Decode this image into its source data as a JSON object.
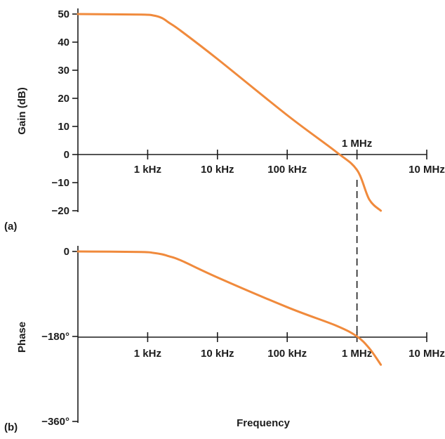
{
  "colors": {
    "curve": "#f08a3c",
    "axis": "#1c1c1c",
    "background": "#ffffff"
  },
  "chart_data": [
    {
      "type": "line",
      "panel_label": "(a)",
      "ylabel": "Gain (dB)",
      "xscale": "log",
      "xlim_hz": [
        100,
        10000000
      ],
      "ylim": [
        -20,
        50
      ],
      "yticks": [
        50,
        40,
        30,
        20,
        10,
        0,
        -10,
        -20
      ],
      "ytick_labels": [
        "50",
        "40",
        "30",
        "20",
        "10",
        "0",
        "−10",
        "−20"
      ],
      "xticks_hz": [
        1000,
        10000,
        100000,
        1000000,
        10000000
      ],
      "xtick_labels": [
        "1 kHz",
        "10 kHz",
        "100 kHz",
        "1 MHz",
        "10 MHz"
      ],
      "series": [
        {
          "x_hz": [
            100,
            800,
            1200,
            1600,
            2000,
            3000,
            10000,
            100000,
            500000,
            1000000,
            1500000,
            2200000
          ],
          "y": [
            50,
            49.8,
            49.5,
            48.6,
            47,
            44,
            34,
            14,
            1,
            -5.5,
            -16,
            -20
          ]
        }
      ]
    },
    {
      "type": "line",
      "panel_label": "(b)",
      "ylabel": "Phase",
      "xlabel": "Frequency",
      "xscale": "log",
      "xlim_hz": [
        100,
        10000000
      ],
      "ylim": [
        -360,
        0
      ],
      "yticks": [
        0,
        -180,
        -360
      ],
      "ytick_labels": [
        "0",
        "−180°",
        "−360°"
      ],
      "xticks_hz": [
        1000,
        10000,
        100000,
        1000000,
        10000000
      ],
      "xtick_labels": [
        "1 kHz",
        "10 kHz",
        "100 kHz",
        "1 MHz",
        "10 MHz"
      ],
      "series": [
        {
          "x_hz": [
            100,
            800,
            1200,
            1600,
            2000,
            3000,
            10000,
            100000,
            500000,
            1000000,
            1500000,
            2200000
          ],
          "y": [
            0,
            -1,
            -3,
            -6,
            -10,
            -19,
            -55,
            -118,
            -157,
            -180,
            -205,
            -240
          ]
        }
      ]
    }
  ],
  "marker_line": {
    "x_hz": 1000000,
    "from": "gain_curve",
    "to": "phase_axis"
  }
}
